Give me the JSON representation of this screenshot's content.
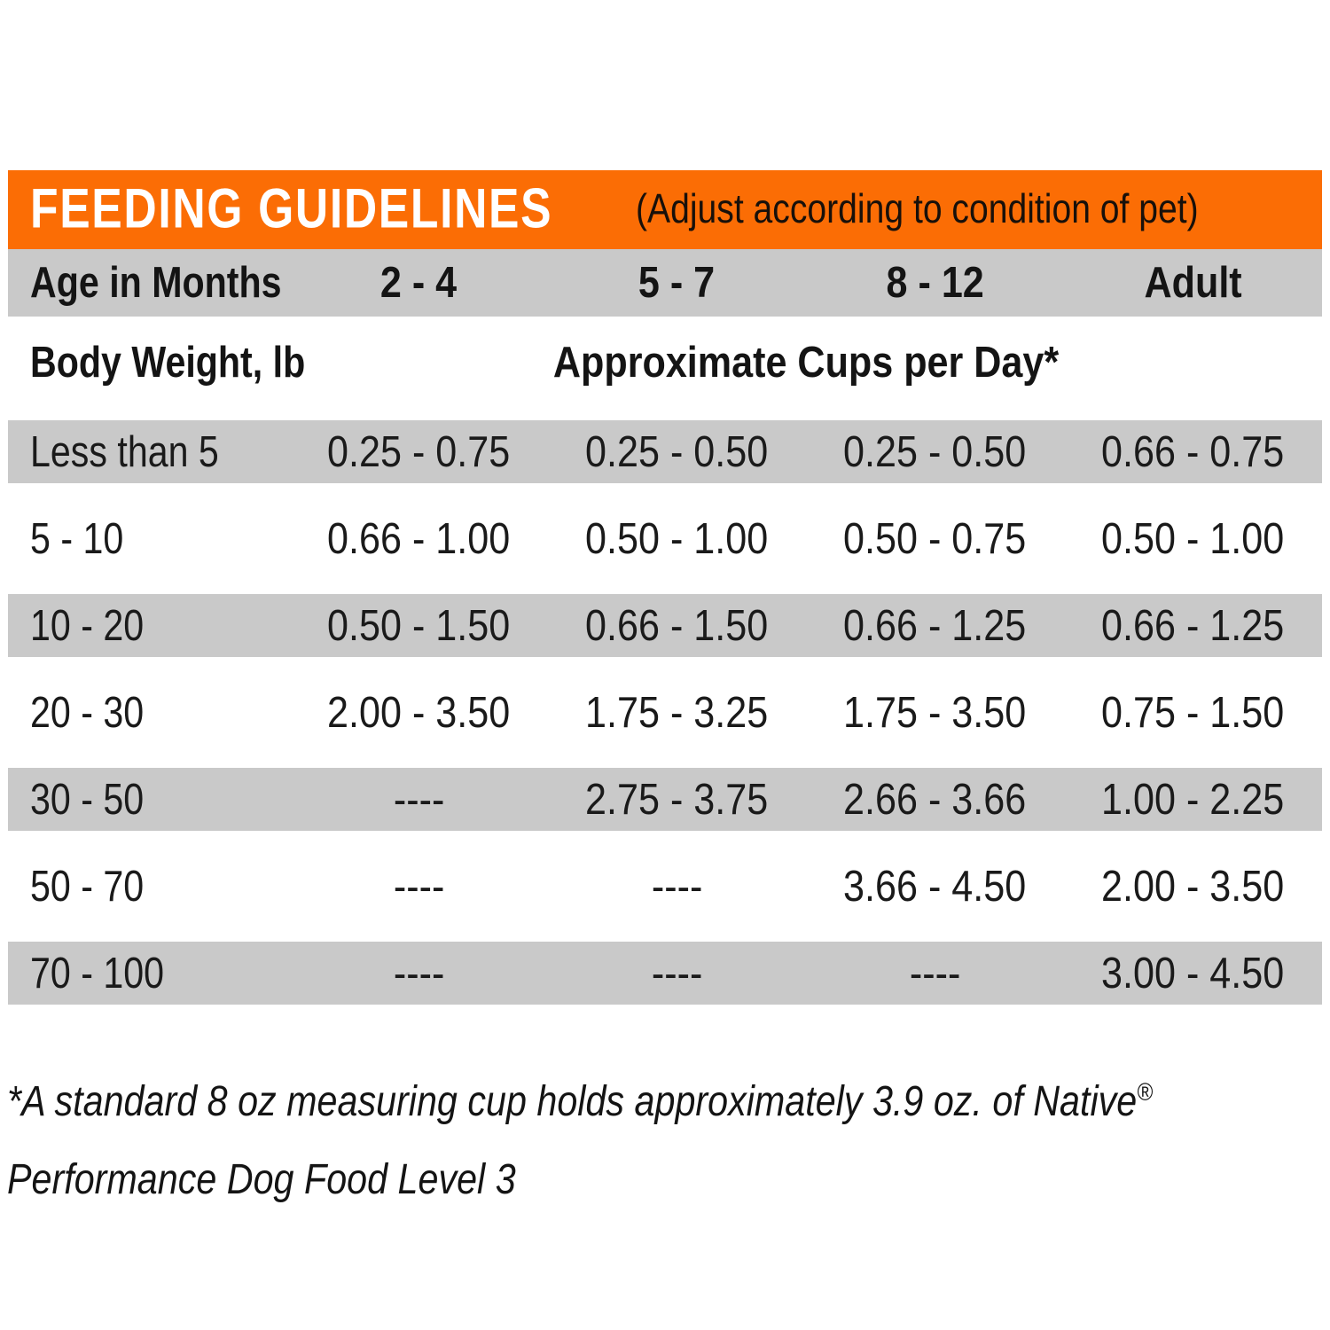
{
  "banner": {
    "title": "FEEDING GUIDELINES",
    "subtitle": "(Adjust according to condition of pet)"
  },
  "chart_data": {
    "type": "table",
    "title": "FEEDING GUIDELINES",
    "subtitle": "(Adjust according to condition of pet)",
    "age_header_label": "Age in Months",
    "age_columns": [
      "2 - 4",
      "5 - 7",
      "8 - 12",
      "Adult"
    ],
    "weight_header_label": "Body Weight, lb",
    "values_header_label": "Approximate Cups per Day*",
    "rows": [
      {
        "weight": "Less than 5",
        "values": [
          "0.25 - 0.75",
          "0.25 - 0.50",
          "0.25 - 0.50",
          "0.66 - 0.75"
        ]
      },
      {
        "weight": "5 - 10",
        "values": [
          "0.66 - 1.00",
          "0.50 - 1.00",
          "0.50 - 0.75",
          "0.50 - 1.00"
        ]
      },
      {
        "weight": "10 - 20",
        "values": [
          "0.50 - 1.50",
          "0.66 - 1.50",
          "0.66 - 1.25",
          "0.66 - 1.25"
        ]
      },
      {
        "weight": "20 - 30",
        "values": [
          "2.00 - 3.50",
          "1.75 - 3.25",
          "1.75 - 3.50",
          "0.75 - 1.50"
        ]
      },
      {
        "weight": "30 - 50",
        "values": [
          "----",
          "2.75 - 3.75",
          "2.66 - 3.66",
          "1.00 - 2.25"
        ]
      },
      {
        "weight": "50 - 70",
        "values": [
          "----",
          "----",
          "3.66 - 4.50",
          "2.00 - 3.50"
        ]
      },
      {
        "weight": "70 - 100",
        "values": [
          "----",
          "----",
          "----",
          "3.00 - 4.50"
        ]
      }
    ]
  },
  "footnote": {
    "line1": "*A standard 8 oz measuring cup holds approximately 3.9 oz. of Native",
    "registered_mark": "®",
    "line2": "Performance Dog Food Level 3"
  },
  "colors": {
    "banner_orange": "#FB6D05",
    "row_shade_gray": "#C9C9C9",
    "title_white": "#FFFFFF",
    "text_black": "#161616"
  }
}
